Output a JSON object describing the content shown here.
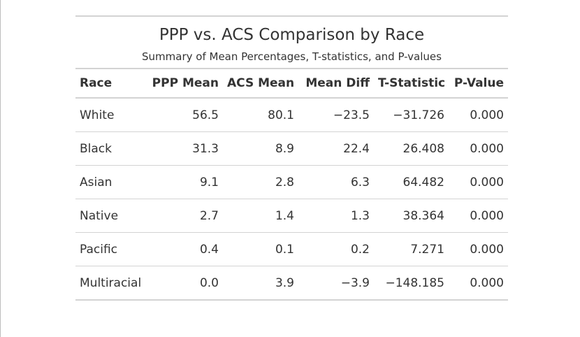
{
  "table": {
    "title": "PPP vs. ACS Comparison by Race",
    "subtitle": "Summary of Mean Percentages, T-statistics, and P-values",
    "headers": [
      "Race",
      "PPP Mean",
      "ACS Mean",
      "Mean Diff",
      "T-Statistic",
      "P-Value"
    ],
    "rows": [
      {
        "race": "White",
        "ppp": "56.5",
        "acs": "80.1",
        "diff": "−23.5",
        "t": "−31.726",
        "p": "0.000"
      },
      {
        "race": "Black",
        "ppp": "31.3",
        "acs": "8.9",
        "diff": "22.4",
        "t": "26.408",
        "p": "0.000"
      },
      {
        "race": "Asian",
        "ppp": "9.1",
        "acs": "2.8",
        "diff": "6.3",
        "t": "64.482",
        "p": "0.000"
      },
      {
        "race": "Native",
        "ppp": "2.7",
        "acs": "1.4",
        "diff": "1.3",
        "t": "38.364",
        "p": "0.000"
      },
      {
        "race": "Pacific",
        "ppp": "0.4",
        "acs": "0.1",
        "diff": "0.2",
        "t": "7.271",
        "p": "0.000"
      },
      {
        "race": "Multiracial",
        "ppp": "0.0",
        "acs": "3.9",
        "diff": "−3.9",
        "t": "−148.185",
        "p": "0.000"
      }
    ]
  },
  "colors": {
    "text": "#333333",
    "rule": "#d3d3d3",
    "background": "#ffffff"
  }
}
